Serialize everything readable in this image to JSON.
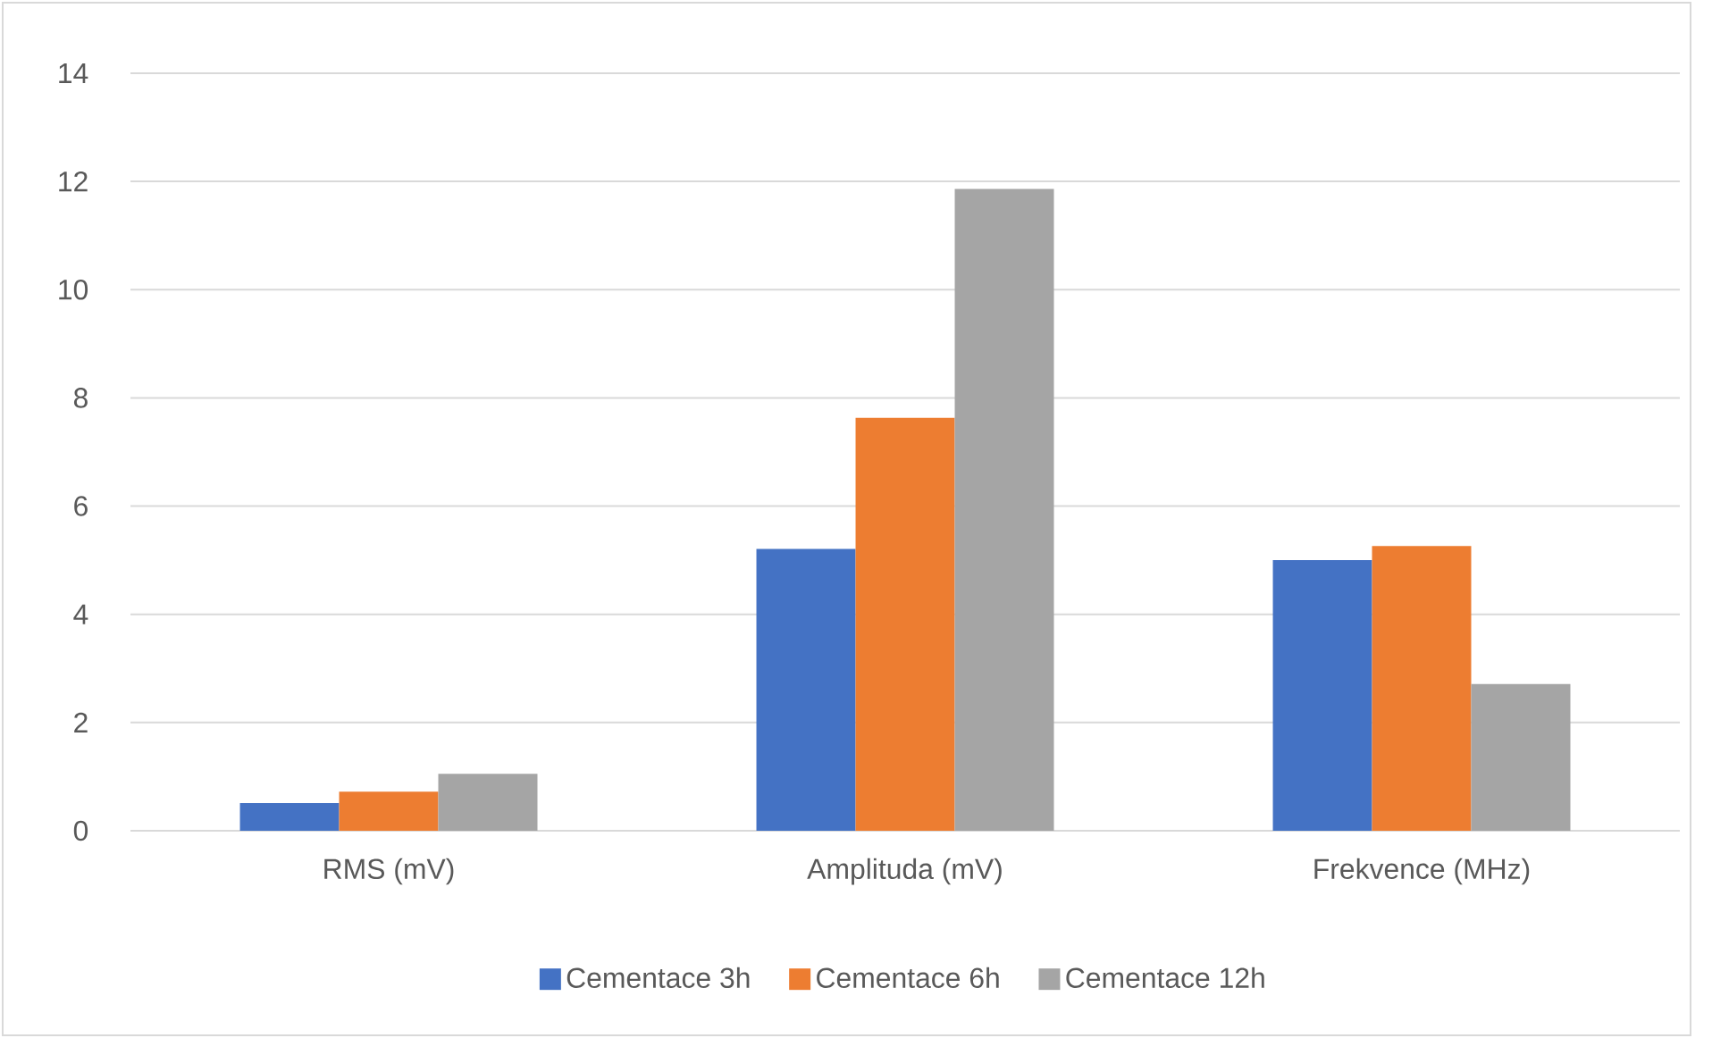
{
  "chart_data": {
    "type": "bar",
    "categories": [
      "RMS (mV)",
      "Amplituda (mV)",
      "Frekvence (MHz)"
    ],
    "series": [
      {
        "name": "Cementace 3h",
        "color": "#4472c4",
        "values": [
          0.51,
          5.21,
          5.0
        ]
      },
      {
        "name": "Cementace 6h",
        "color": "#ed7d31",
        "values": [
          0.72,
          7.63,
          5.26
        ]
      },
      {
        "name": "Cementace 12h",
        "color": "#a5a5a5",
        "values": [
          1.05,
          11.86,
          2.71
        ]
      }
    ],
    "ylim": [
      0,
      14
    ],
    "yticks": [
      0,
      2,
      4,
      6,
      8,
      10,
      12,
      14
    ],
    "grid": "y",
    "legend": "bottom"
  }
}
